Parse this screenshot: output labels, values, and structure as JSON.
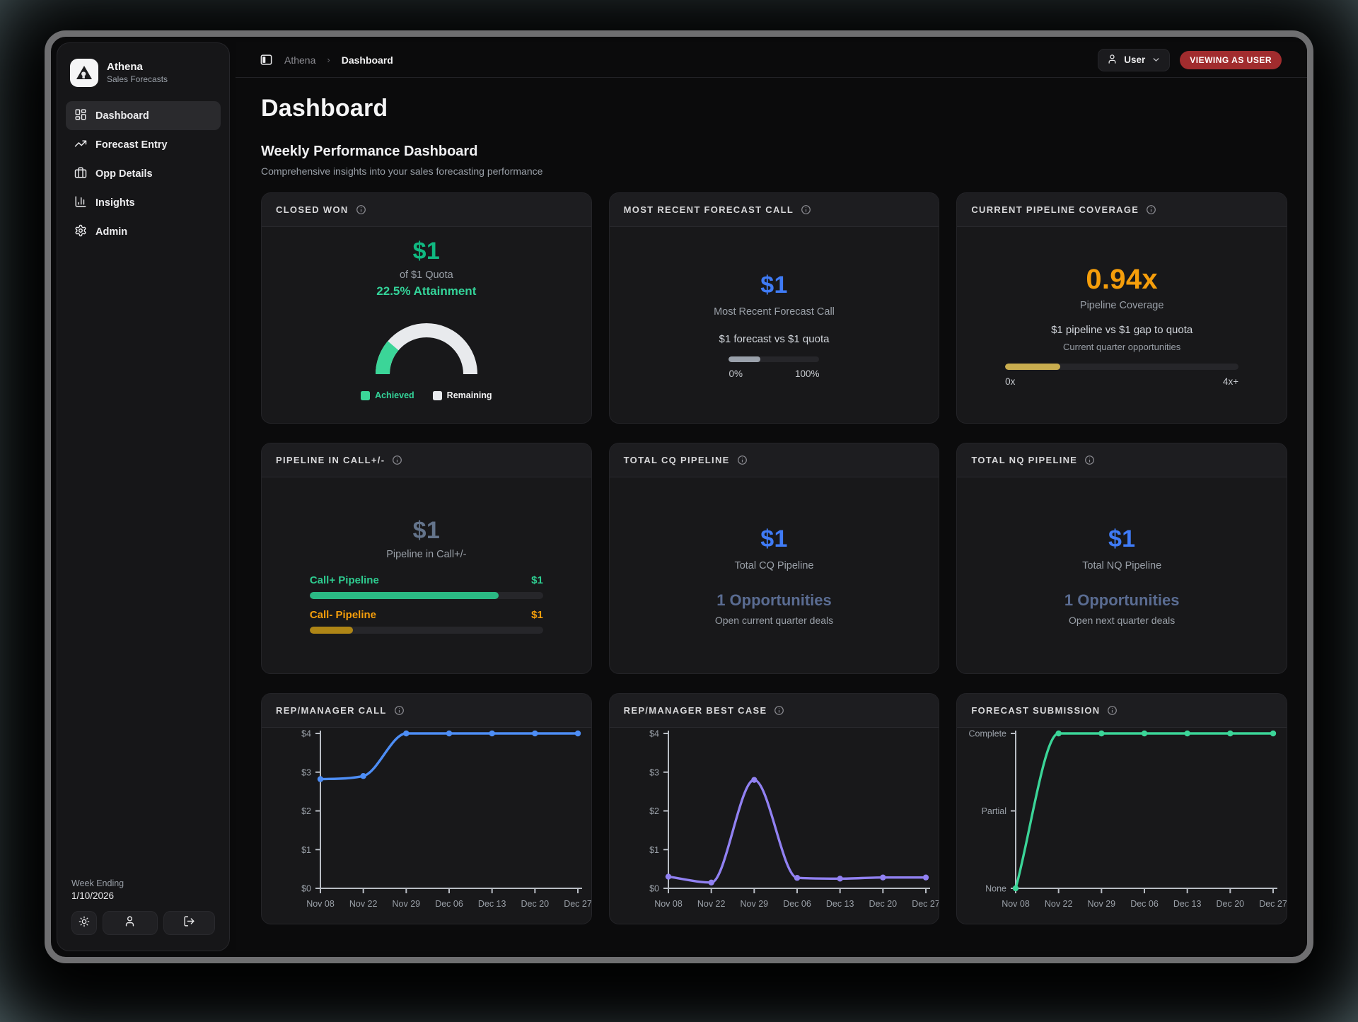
{
  "app": {
    "name": "Athena",
    "subtitle": "Sales Forecasts"
  },
  "topbar": {
    "breadcrumb_root": "Athena",
    "breadcrumb_current": "Dashboard",
    "user_label": "User",
    "viewing_badge": "VIEWING AS USER"
  },
  "sidebar": {
    "items": [
      {
        "label": "Dashboard",
        "active": true
      },
      {
        "label": "Forecast Entry",
        "active": false
      },
      {
        "label": "Opp Details",
        "active": false
      },
      {
        "label": "Insights",
        "active": false
      },
      {
        "label": "Admin",
        "active": false
      }
    ],
    "footer": {
      "week_ending_label": "Week Ending",
      "week_ending_date": "1/10/2026"
    }
  },
  "page": {
    "title": "Dashboard",
    "section_title": "Weekly Performance Dashboard",
    "section_subtitle": "Comprehensive insights into your sales forecasting performance"
  },
  "cards": {
    "closed_won": {
      "title": "CLOSED WON",
      "value": "$1",
      "quota_text": "of $1 Quota",
      "attainment_text": "22.5% Attainment",
      "attainment_pct": 22.5,
      "achieved_color": "#3bd598",
      "remaining_color": "#e8eaed",
      "legend": [
        {
          "label": "Achieved"
        },
        {
          "label": "Remaining"
        }
      ]
    },
    "forecast_call": {
      "title": "MOST RECENT FORECAST CALL",
      "value": "$1",
      "label": "Most Recent Forecast Call",
      "detail": "$1 forecast vs $1 quota",
      "progress_pct": 35,
      "progress_color": "#9aa1ab",
      "range_min": "0%",
      "range_max": "100%"
    },
    "pipeline_coverage": {
      "title": "CURRENT PIPELINE COVERAGE",
      "value": "0.94x",
      "label": "Pipeline Coverage",
      "detail": "$1 pipeline vs $1 gap to quota",
      "subdetail": "Current quarter opportunities",
      "progress_pct": 23.5,
      "progress_color": "#c9ad4f",
      "range_min": "0x",
      "range_max": "4x+"
    },
    "pipeline_call": {
      "title": "PIPELINE IN CALL+/-",
      "value": "$1",
      "label": "Pipeline in Call+/-",
      "bars": [
        {
          "label": "Call+ Pipeline",
          "value": "$1",
          "pct": 81,
          "label_color": "#2ecc90",
          "bar_color": "#2bb984"
        },
        {
          "label": "Call- Pipeline",
          "value": "$1",
          "pct": 18.5,
          "label_color": "#f59e0b",
          "bar_color": "#ae8516"
        }
      ]
    },
    "total_cq": {
      "title": "TOTAL CQ PIPELINE",
      "value": "$1",
      "label": "Total CQ Pipeline",
      "opps": "1 Opportunities",
      "sub": "Open current quarter deals"
    },
    "total_nq": {
      "title": "TOTAL NQ PIPELINE",
      "value": "$1",
      "label": "Total NQ Pipeline",
      "opps": "1 Opportunities",
      "sub": "Open next quarter deals"
    }
  },
  "chart_data": [
    {
      "type": "line",
      "title": "REP/MANAGER CALL",
      "color": "#4d8df5",
      "x": [
        "Nov 08",
        "Nov 22",
        "Nov 29",
        "Dec 06",
        "Dec 13",
        "Dec 20",
        "Dec 27"
      ],
      "values": [
        2.82,
        2.9,
        4,
        4,
        4,
        4,
        4
      ],
      "ylim": [
        0,
        4
      ],
      "y_ticks": [
        {
          "v": 0,
          "label": "$0"
        },
        {
          "v": 1,
          "label": "$1"
        },
        {
          "v": 2,
          "label": "$2"
        },
        {
          "v": 3,
          "label": "$3"
        },
        {
          "v": 4,
          "label": "$4"
        }
      ],
      "grid": false,
      "legend_position": "none"
    },
    {
      "type": "line",
      "title": "REP/MANAGER BEST CASE",
      "color": "#9181f2",
      "x": [
        "Nov 08",
        "Nov 22",
        "Nov 29",
        "Dec 06",
        "Dec 13",
        "Dec 20",
        "Dec 27"
      ],
      "values": [
        0.3,
        0.15,
        2.8,
        0.27,
        0.25,
        0.28,
        0.28
      ],
      "ylim": [
        0,
        4
      ],
      "y_ticks": [
        {
          "v": 0,
          "label": "$0"
        },
        {
          "v": 1,
          "label": "$1"
        },
        {
          "v": 2,
          "label": "$2"
        },
        {
          "v": 3,
          "label": "$3"
        },
        {
          "v": 4,
          "label": "$4"
        }
      ],
      "grid": false,
      "legend_position": "none"
    },
    {
      "type": "line",
      "title": "FORECAST SUBMISSION",
      "color": "#3bd598",
      "x": [
        "Nov 08",
        "Nov 22",
        "Nov 29",
        "Dec 06",
        "Dec 13",
        "Dec 20",
        "Dec 27"
      ],
      "values": [
        0,
        2,
        2,
        2,
        2,
        2,
        2
      ],
      "value_scale": [
        "None",
        "Partial",
        "Complete"
      ],
      "ylim": [
        0,
        2
      ],
      "y_ticks": [
        {
          "v": 0,
          "label": "None"
        },
        {
          "v": 1,
          "label": "Partial"
        },
        {
          "v": 2,
          "label": "Complete"
        }
      ],
      "grid": false,
      "legend_position": "none"
    }
  ]
}
